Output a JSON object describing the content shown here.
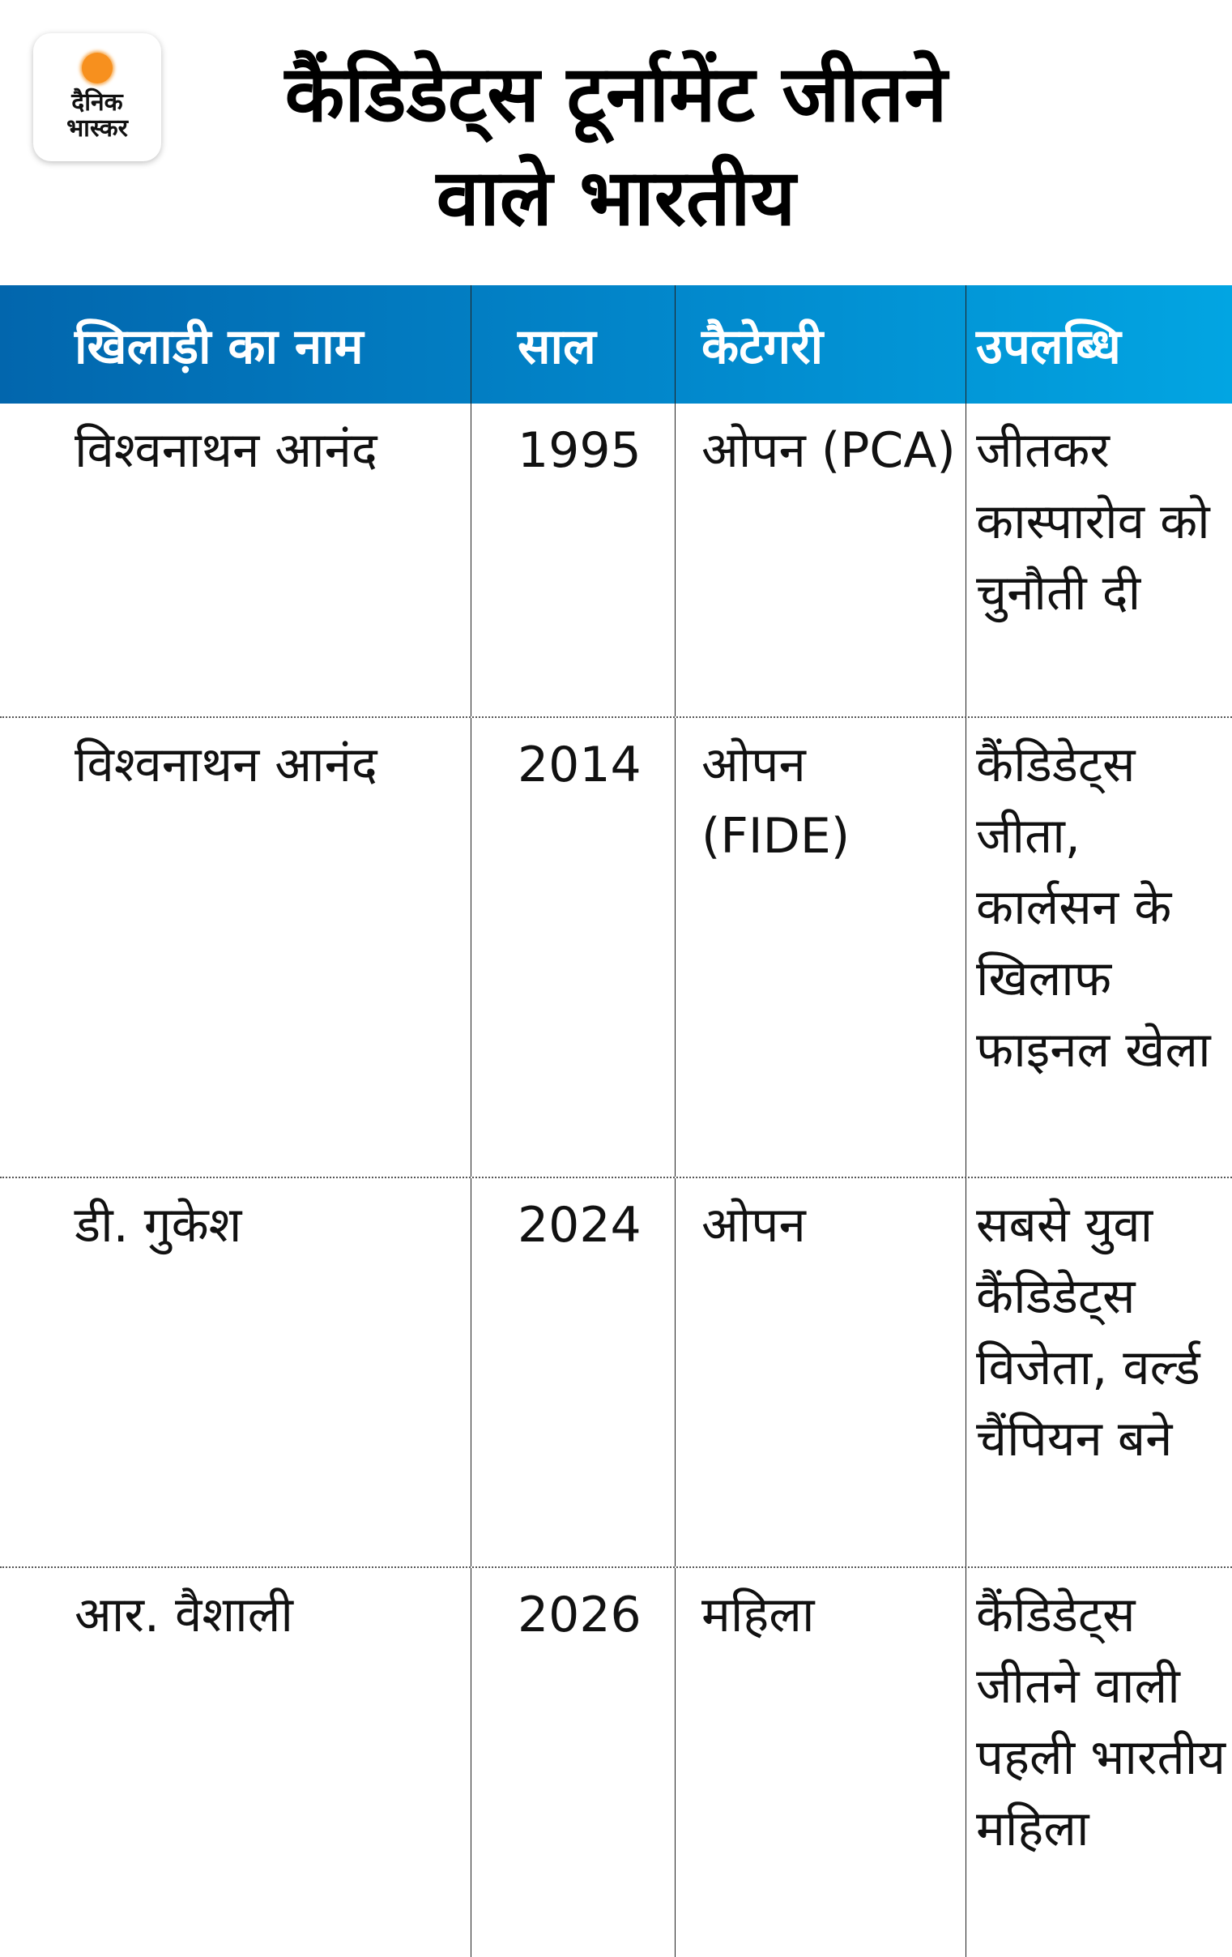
{
  "logo": {
    "line1": "दैनिक",
    "line2": "भास्कर",
    "accent": "#f7901e"
  },
  "title": {
    "line1": "कैंडिडेट्स टूर्नामेंट जीतने",
    "line2": "वाले भारतीय"
  },
  "table": {
    "header_colors": [
      "#0266ad",
      "#02a5e2"
    ],
    "columns": [
      "खिलाड़ी का नाम",
      "साल",
      "कैटेगरी",
      "उपलब्धि"
    ],
    "rows": [
      {
        "name": "विश्वनाथन आनंद",
        "year": "1995",
        "category": "ओपन (PCA)",
        "achievement": "जीतकर कास्पारोव को चुनौती दी"
      },
      {
        "name": "विश्वनाथन आनंद",
        "year": "2014",
        "category": "ओपन (FIDE)",
        "achievement": "कैंडिडेट्स जीता, कार्लसन के खिलाफ फाइनल खेला"
      },
      {
        "name": "डी. गुकेश",
        "year": "2024",
        "category": "ओपन",
        "achievement": "सबसे युवा कैंडिडेट्स विजेता, वर्ल्ड चैंपियन बने"
      },
      {
        "name": "आर. वैशाली",
        "year": "2026",
        "category": "महिला",
        "achievement": "कैंडिडेट्स जीतने वाली पहली भारतीय महिला"
      }
    ]
  }
}
